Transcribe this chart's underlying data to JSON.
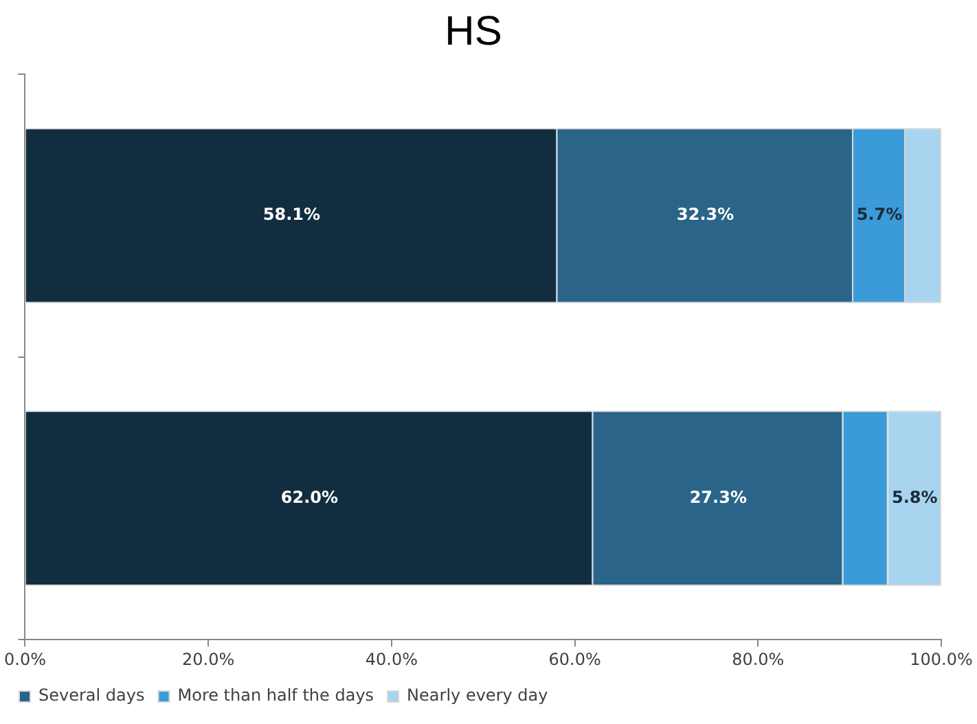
{
  "chart_data": {
    "type": "bar",
    "orientation": "horizontal",
    "stacked": true,
    "title": "HS",
    "categories": [
      null,
      null
    ],
    "series": [
      {
        "color": "#132d40",
        "values": [
          58.1,
          62.0
        ],
        "value_labels": [
          "58.1%",
          "62.0%"
        ]
      },
      {
        "name": "Several days",
        "color": "#2a6489",
        "values": [
          32.3,
          27.3
        ],
        "value_labels": [
          "32.3%",
          "27.3%"
        ]
      },
      {
        "name": "More than half the days",
        "color": "#3b9bd8",
        "values": [
          5.7,
          4.9
        ],
        "value_labels": [
          "5.7%",
          null
        ]
      },
      {
        "name": "Nearly every day",
        "color": "#a9d4f0",
        "values": [
          3.9,
          5.8
        ],
        "value_labels": [
          null,
          "5.8%"
        ]
      }
    ],
    "xlim": [
      0,
      100
    ],
    "xticks": [
      {
        "value": 0,
        "label": "0.0%"
      },
      {
        "value": 20,
        "label": "20.0%"
      },
      {
        "value": 40,
        "label": "40.0%"
      },
      {
        "value": 60,
        "label": "60.0%"
      },
      {
        "value": 80,
        "label": "80.0%"
      },
      {
        "value": 100,
        "label": "100.0%"
      }
    ],
    "grid": false,
    "legend": "bottom left"
  }
}
